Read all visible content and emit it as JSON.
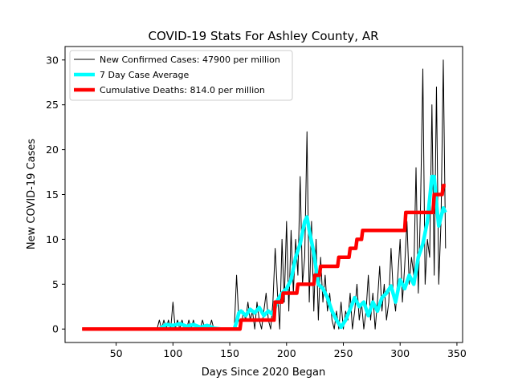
{
  "chart_data": {
    "type": "line",
    "title": "COVID-19 Stats For Ashley County, AR",
    "xlabel": "Days Since 2020 Began",
    "ylabel": "New COVID-19 Cases",
    "xlim": [
      5,
      355
    ],
    "ylim": [
      -1.5,
      31.5
    ],
    "xticks": [
      50,
      100,
      150,
      200,
      250,
      300,
      350
    ],
    "yticks": [
      0,
      5,
      10,
      15,
      20,
      25,
      30
    ],
    "grid": false,
    "legend_position": "top-left",
    "series": [
      {
        "name": "New Confirmed Cases: 47900 per million",
        "color": "#000000",
        "x": [
          20,
          30,
          40,
          50,
          60,
          70,
          80,
          86,
          88,
          90,
          92,
          94,
          96,
          98,
          100,
          102,
          104,
          106,
          108,
          110,
          112,
          114,
          116,
          118,
          120,
          122,
          124,
          126,
          128,
          130,
          132,
          134,
          136,
          138,
          140,
          142,
          144,
          146,
          148,
          150,
          152,
          154,
          156,
          158,
          160,
          162,
          164,
          166,
          168,
          170,
          172,
          174,
          176,
          178,
          180,
          182,
          184,
          186,
          188,
          190,
          192,
          194,
          196,
          198,
          200,
          202,
          204,
          206,
          208,
          210,
          212,
          214,
          216,
          218,
          220,
          222,
          224,
          226,
          228,
          230,
          232,
          234,
          236,
          238,
          240,
          242,
          244,
          246,
          248,
          250,
          252,
          254,
          256,
          258,
          260,
          262,
          264,
          266,
          268,
          270,
          272,
          274,
          276,
          278,
          280,
          282,
          284,
          286,
          288,
          290,
          292,
          294,
          296,
          298,
          300,
          302,
          304,
          306,
          308,
          310,
          312,
          314,
          316,
          318,
          320,
          322,
          324,
          326,
          328,
          330,
          332,
          334,
          336,
          338,
          340
        ],
        "y": [
          0,
          0,
          0,
          0,
          0,
          0,
          0,
          0,
          1,
          0,
          1,
          0,
          1,
          0,
          3,
          0,
          1,
          0,
          1,
          0,
          0,
          1,
          0,
          1,
          0,
          0,
          0,
          1,
          0,
          0,
          0,
          1,
          0,
          0,
          0,
          0,
          0,
          0,
          0,
          0,
          0,
          0,
          6,
          1,
          0,
          2,
          1,
          3,
          1,
          2,
          0,
          3,
          1,
          0,
          2,
          4,
          1,
          0,
          3,
          9,
          4,
          0,
          10,
          3,
          12,
          2,
          11,
          4,
          10,
          6,
          17,
          5,
          8,
          22,
          3,
          12,
          2,
          10,
          1,
          8,
          3,
          6,
          2,
          4,
          1,
          0,
          2,
          0,
          3,
          0,
          2,
          1,
          4,
          0,
          2,
          5,
          1,
          3,
          0,
          2,
          6,
          1,
          4,
          0,
          3,
          7,
          2,
          5,
          1,
          3,
          9,
          4,
          2,
          6,
          10,
          3,
          7,
          12,
          5,
          8,
          6,
          18,
          4,
          14,
          29,
          5,
          10,
          8,
          25,
          6,
          27,
          5,
          12,
          30,
          9
        ]
      },
      {
        "name": "7 Day Case Average",
        "color": "#00ffff",
        "x": [
          88,
          94,
          100,
          106,
          112,
          118,
          124,
          130,
          136,
          142,
          148,
          154,
          156,
          158,
          160,
          164,
          168,
          172,
          176,
          180,
          184,
          188,
          192,
          196,
          200,
          204,
          208,
          212,
          216,
          218,
          220,
          224,
          228,
          232,
          236,
          240,
          244,
          248,
          252,
          256,
          260,
          264,
          268,
          272,
          276,
          280,
          284,
          288,
          292,
          296,
          300,
          304,
          308,
          312,
          316,
          320,
          324,
          328,
          330,
          332,
          334,
          336,
          338,
          340
        ],
        "y": [
          0,
          0.5,
          0.4,
          0.6,
          0.3,
          0.5,
          0.2,
          0.4,
          0.1,
          0,
          0,
          0,
          0.8,
          1.8,
          2.0,
          1.5,
          2.2,
          1.8,
          2.4,
          1.5,
          2.0,
          1.6,
          3.2,
          4.0,
          4.5,
          5.5,
          8.0,
          9.5,
          12.0,
          12.5,
          11.0,
          8.5,
          5.0,
          4.5,
          3.5,
          2.0,
          1.0,
          0.2,
          1.0,
          2.2,
          3.5,
          2.5,
          3.0,
          1.5,
          3.0,
          2.0,
          3.5,
          4.0,
          4.8,
          3.0,
          5.5,
          4.5,
          6.0,
          5.0,
          8.0,
          9.5,
          12.0,
          17.0,
          17.0,
          14.0,
          11.5,
          12.5,
          13.5,
          13.0
        ]
      },
      {
        "name": "Cumulative Deaths: 814.0 per million",
        "color": "#ff0000",
        "x": [
          20,
          159,
          160,
          189,
          190,
          196,
          197,
          209,
          210,
          224,
          225,
          229,
          230,
          245,
          246,
          255,
          256,
          261,
          262,
          266,
          267,
          272,
          273,
          304,
          305,
          329,
          330,
          337,
          338,
          340
        ],
        "y": [
          0,
          0,
          1,
          1,
          3,
          3,
          4,
          4,
          5,
          5,
          6,
          6,
          7,
          7,
          8,
          8,
          9,
          9,
          10,
          10,
          11,
          11,
          11,
          11,
          13,
          13,
          15,
          15,
          16,
          16
        ]
      }
    ]
  }
}
